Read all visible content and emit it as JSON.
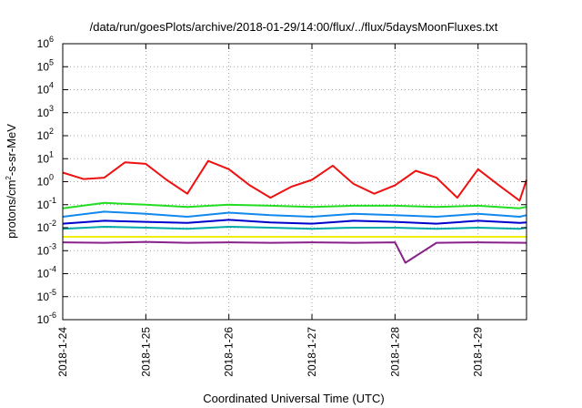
{
  "chart_data": {
    "type": "line",
    "title": "/data/run/goesPlots/archive/2018-01-29/14:00/flux/../flux/5daysMoonFluxes.txt",
    "xlabel": "Coordinated Universal Time (UTC)",
    "ylabel": {
      "prefix": "protons/cm",
      "sup": "2",
      "suffix": "-s-sr-MeV"
    },
    "yscale": "log",
    "grid": true,
    "xlim": [
      "2018-01-24T00:00",
      "2018-01-29T14:00"
    ],
    "ylim": [
      1e-06,
      1000000.0
    ],
    "x_ticks": [
      "2018-1-24",
      "2018-1-25",
      "2018-1-26",
      "2018-1-27",
      "2018-1-28",
      "2018-1-29"
    ],
    "y_ticks": [
      {
        "base": "10",
        "exp": "-6",
        "value": 1e-06
      },
      {
        "base": "10",
        "exp": "-5",
        "value": 1e-05
      },
      {
        "base": "10",
        "exp": "-4",
        "value": 0.0001
      },
      {
        "base": "10",
        "exp": "-3",
        "value": 0.001
      },
      {
        "base": "10",
        "exp": "-2",
        "value": 0.01
      },
      {
        "base": "10",
        "exp": "-1",
        "value": 0.1
      },
      {
        "base": "10",
        "exp": "0",
        "value": 1
      },
      {
        "base": "10",
        "exp": "1",
        "value": 10
      },
      {
        "base": "10",
        "exp": "2",
        "value": 100
      },
      {
        "base": "10",
        "exp": "3",
        "value": 1000
      },
      {
        "base": "10",
        "exp": "4",
        "value": 10000
      },
      {
        "base": "10",
        "exp": "5",
        "value": 100000
      },
      {
        "base": "10",
        "exp": "6",
        "value": 1000000
      }
    ],
    "series": [
      {
        "color": "#ee1111",
        "x": [
          "2018-01-24T00:00",
          "2018-01-24T06:00",
          "2018-01-24T12:00",
          "2018-01-24T18:00",
          "2018-01-25T00:00",
          "2018-01-25T06:00",
          "2018-01-25T12:00",
          "2018-01-25T18:00",
          "2018-01-26T00:00",
          "2018-01-26T06:00",
          "2018-01-26T12:00",
          "2018-01-26T18:00",
          "2018-01-27T00:00",
          "2018-01-27T06:00",
          "2018-01-27T12:00",
          "2018-01-27T18:00",
          "2018-01-28T00:00",
          "2018-01-28T06:00",
          "2018-01-28T12:00",
          "2018-01-28T18:00",
          "2018-01-29T00:00",
          "2018-01-29T06:00",
          "2018-01-29T12:00",
          "2018-01-29T14:00"
        ],
        "values": [
          2.5,
          1.3,
          1.5,
          7.0,
          6.0,
          1.2,
          0.3,
          8.0,
          3.5,
          0.7,
          0.2,
          0.6,
          1.2,
          5.0,
          0.8,
          0.3,
          0.7,
          3.0,
          1.5,
          0.2,
          3.5,
          0.7,
          0.15,
          1.2
        ]
      },
      {
        "color": "#22dd22",
        "x": [
          "2018-01-24T00:00",
          "2018-01-24T12:00",
          "2018-01-25T00:00",
          "2018-01-25T12:00",
          "2018-01-26T00:00",
          "2018-01-26T12:00",
          "2018-01-27T00:00",
          "2018-01-27T12:00",
          "2018-01-28T00:00",
          "2018-01-28T12:00",
          "2018-01-29T00:00",
          "2018-01-29T12:00",
          "2018-01-29T14:00"
        ],
        "values": [
          0.07,
          0.12,
          0.1,
          0.08,
          0.1,
          0.09,
          0.08,
          0.09,
          0.09,
          0.08,
          0.09,
          0.07,
          0.08
        ]
      },
      {
        "color": "#1188ee",
        "x": [
          "2018-01-24T00:00",
          "2018-01-24T12:00",
          "2018-01-25T00:00",
          "2018-01-25T12:00",
          "2018-01-26T00:00",
          "2018-01-26T12:00",
          "2018-01-27T00:00",
          "2018-01-27T12:00",
          "2018-01-28T00:00",
          "2018-01-28T12:00",
          "2018-01-29T00:00",
          "2018-01-29T12:00",
          "2018-01-29T14:00"
        ],
        "values": [
          0.03,
          0.05,
          0.04,
          0.03,
          0.045,
          0.035,
          0.03,
          0.04,
          0.035,
          0.03,
          0.04,
          0.03,
          0.035
        ]
      },
      {
        "color": "#0000cc",
        "x": [
          "2018-01-24T00:00",
          "2018-01-24T12:00",
          "2018-01-25T00:00",
          "2018-01-25T12:00",
          "2018-01-26T00:00",
          "2018-01-26T12:00",
          "2018-01-27T00:00",
          "2018-01-27T12:00",
          "2018-01-28T00:00",
          "2018-01-28T12:00",
          "2018-01-29T00:00",
          "2018-01-29T12:00",
          "2018-01-29T14:00"
        ],
        "values": [
          0.015,
          0.02,
          0.018,
          0.016,
          0.022,
          0.017,
          0.015,
          0.02,
          0.018,
          0.015,
          0.02,
          0.016,
          0.017
        ]
      },
      {
        "color": "#00aaaa",
        "x": [
          "2018-01-24T00:00",
          "2018-01-24T12:00",
          "2018-01-25T00:00",
          "2018-01-25T12:00",
          "2018-01-26T00:00",
          "2018-01-26T12:00",
          "2018-01-27T00:00",
          "2018-01-27T12:00",
          "2018-01-28T00:00",
          "2018-01-28T12:00",
          "2018-01-29T00:00",
          "2018-01-29T12:00",
          "2018-01-29T14:00"
        ],
        "values": [
          0.009,
          0.011,
          0.01,
          0.009,
          0.011,
          0.01,
          0.009,
          0.01,
          0.01,
          0.009,
          0.01,
          0.009,
          0.01
        ]
      },
      {
        "color": "#eeee00",
        "x": [
          "2018-01-24T00:00",
          "2018-01-25T00:00",
          "2018-01-26T00:00",
          "2018-01-27T00:00",
          "2018-01-28T00:00",
          "2018-01-29T00:00",
          "2018-01-29T14:00"
        ],
        "values": [
          0.004,
          0.004,
          0.004,
          0.004,
          0.004,
          0.004,
          0.004
        ]
      },
      {
        "color": "#882288",
        "x": [
          "2018-01-24T00:00",
          "2018-01-24T12:00",
          "2018-01-25T00:00",
          "2018-01-25T12:00",
          "2018-01-26T00:00",
          "2018-01-26T12:00",
          "2018-01-27T00:00",
          "2018-01-27T12:00",
          "2018-01-28T00:00",
          "2018-01-28T03:00",
          "2018-01-28T12:00",
          "2018-01-29T00:00",
          "2018-01-29T14:00"
        ],
        "values": [
          0.0023,
          0.0022,
          0.0024,
          0.0022,
          0.0023,
          0.0022,
          0.0023,
          0.0022,
          0.0023,
          0.0003,
          0.0022,
          0.0023,
          0.0022
        ]
      }
    ]
  }
}
